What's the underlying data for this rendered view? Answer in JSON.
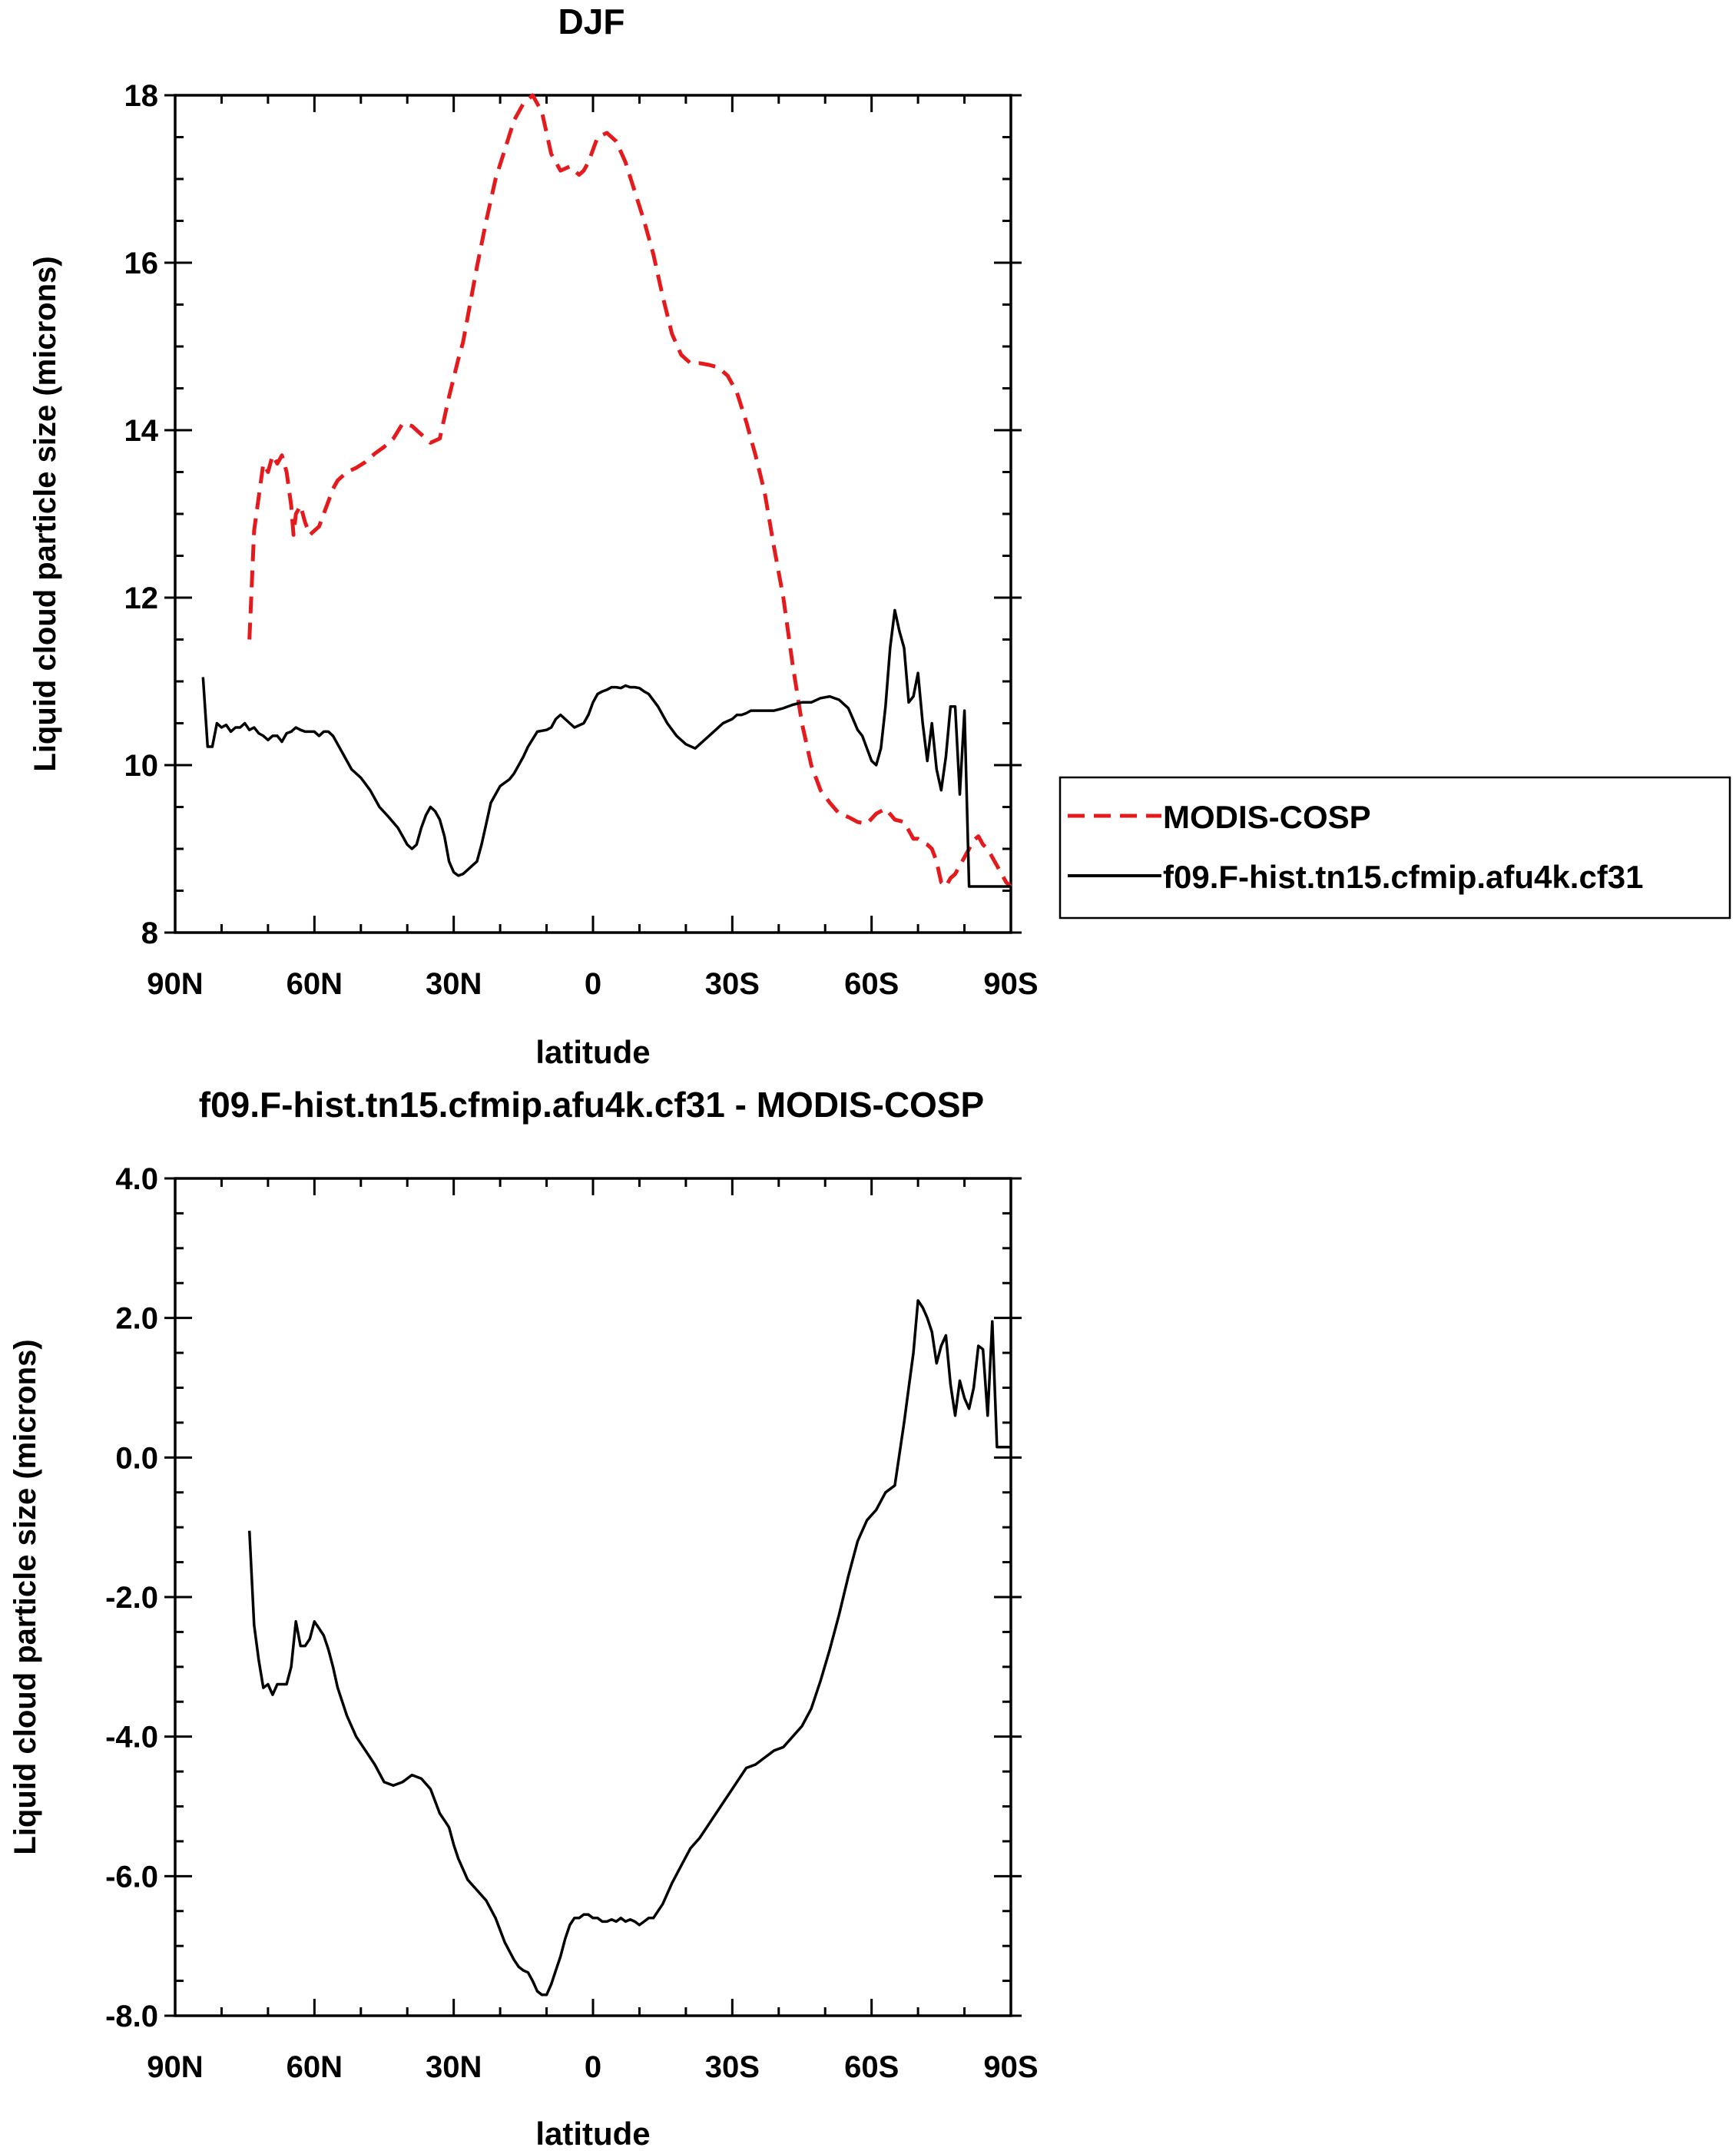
{
  "chart_data": [
    {
      "type": "line",
      "title": "DJF",
      "xlabel": "latitude",
      "ylabel": "Liquid cloud particle size (microns)",
      "xlim": [
        90,
        -90
      ],
      "ylim": [
        8,
        18
      ],
      "xticks": [
        90,
        60,
        30,
        0,
        -30,
        -60,
        -90
      ],
      "xtick_labels": [
        "90N",
        "60N",
        "30N",
        "0",
        "30S",
        "60S",
        "90S"
      ],
      "yticks": [
        8,
        10,
        12,
        14,
        16,
        18
      ],
      "ytick_labels": [
        "8",
        "10",
        "12",
        "14",
        "16",
        "18"
      ],
      "legend_position": "right",
      "series": [
        {
          "name": "MODIS-COSP",
          "color": "#e41a1c",
          "dash": "dashed",
          "x": [
            74,
            73,
            71,
            70,
            69,
            68,
            67,
            66,
            65,
            64.5,
            64,
            63,
            62,
            61,
            60,
            59,
            58,
            57,
            56,
            55,
            53,
            51,
            49,
            47,
            45,
            43,
            41,
            39,
            37,
            35,
            33,
            31,
            29,
            28,
            27,
            25,
            23,
            21,
            19,
            17,
            15,
            13,
            11,
            9,
            7,
            5,
            4,
            3,
            2,
            1,
            0,
            -1,
            -3,
            -5,
            -7,
            -9,
            -11,
            -13,
            -15,
            -17,
            -19,
            -21,
            -23,
            -25,
            -27,
            -29,
            -31,
            -33,
            -35,
            -37,
            -39,
            -41,
            -43,
            -45,
            -47,
            -49,
            -51,
            -53,
            -55,
            -57,
            -59,
            -61,
            -63,
            -65,
            -67,
            -69,
            -70,
            -71,
            -72,
            -73,
            -74,
            -75,
            -76,
            -77,
            -78,
            -79,
            -80,
            -81,
            -82,
            -83,
            -84,
            -85,
            -86,
            -87,
            -88,
            -89,
            -90
          ],
          "y": [
            11.5,
            12.8,
            13.6,
            13.5,
            13.7,
            13.6,
            13.7,
            13.5,
            13.1,
            12.75,
            13.0,
            13.1,
            12.9,
            12.75,
            12.8,
            12.85,
            13.0,
            13.15,
            13.3,
            13.4,
            13.5,
            13.55,
            13.62,
            13.72,
            13.8,
            13.9,
            14.08,
            14.05,
            13.95,
            13.85,
            13.9,
            14.4,
            14.85,
            15.05,
            15.35,
            15.95,
            16.5,
            17.0,
            17.35,
            17.7,
            17.9,
            18.0,
            17.8,
            17.3,
            17.1,
            17.15,
            17.1,
            17.05,
            17.1,
            17.2,
            17.35,
            17.5,
            17.55,
            17.45,
            17.2,
            16.85,
            16.5,
            16.1,
            15.6,
            15.15,
            14.9,
            14.8,
            14.8,
            14.78,
            14.75,
            14.65,
            14.45,
            14.1,
            13.7,
            13.25,
            12.6,
            12.0,
            11.2,
            10.5,
            10.0,
            9.7,
            9.55,
            9.42,
            9.38,
            9.32,
            9.3,
            9.42,
            9.48,
            9.35,
            9.32,
            9.12,
            9.12,
            9.08,
            9.05,
            9.0,
            8.85,
            8.6,
            8.55,
            8.65,
            8.7,
            8.8,
            8.9,
            9.0,
            9.1,
            9.15,
            9.05,
            9.0,
            8.9,
            8.8,
            8.7,
            8.6,
            8.55
          ]
        },
        {
          "name": "f09.F-hist.tn15.cfmip.afu4k.cf31",
          "color": "#000000",
          "dash": "solid",
          "x": [
            84,
            83,
            82,
            81,
            80,
            79,
            78,
            77,
            76,
            75,
            74,
            73,
            72,
            71,
            70,
            69,
            68,
            67,
            66,
            65,
            64,
            63,
            62,
            61,
            60,
            59,
            58,
            57,
            56,
            55,
            54,
            52,
            50,
            48,
            46,
            44,
            42,
            41,
            40,
            39,
            38,
            37,
            36,
            35,
            34,
            33,
            32,
            31,
            30,
            29,
            28,
            27,
            26,
            25,
            24,
            23,
            22,
            20,
            18,
            17,
            16,
            15,
            14,
            12,
            10,
            9,
            8,
            7,
            6,
            4,
            2,
            1,
            0,
            -1,
            -2,
            -3,
            -4,
            -5,
            -6,
            -7,
            -8,
            -9,
            -10,
            -11,
            -12,
            -14,
            -16,
            -18,
            -20,
            -22,
            -24,
            -26,
            -28,
            -30,
            -31,
            -32,
            -33,
            -34,
            -35,
            -37,
            -39,
            -41,
            -43,
            -45,
            -47,
            -49,
            -51,
            -53,
            -55,
            -56,
            -57,
            -58,
            -59,
            -60,
            -61,
            -62,
            -63,
            -64,
            -65,
            -66,
            -67,
            -68,
            -69,
            -70,
            -71,
            -72,
            -73,
            -74,
            -75,
            -76,
            -77,
            -78,
            -79,
            -80,
            -81,
            -82,
            -83,
            -84,
            -85,
            -86,
            -87,
            -88,
            -89,
            -90
          ],
          "y": [
            11.05,
            10.22,
            10.22,
            10.5,
            10.45,
            10.48,
            10.4,
            10.45,
            10.45,
            10.5,
            10.42,
            10.45,
            10.38,
            10.35,
            10.3,
            10.35,
            10.35,
            10.28,
            10.38,
            10.4,
            10.45,
            10.42,
            10.4,
            10.4,
            10.4,
            10.35,
            10.4,
            10.4,
            10.35,
            10.25,
            10.15,
            9.95,
            9.85,
            9.7,
            9.5,
            9.38,
            9.25,
            9.15,
            9.05,
            9.0,
            9.05,
            9.25,
            9.4,
            9.5,
            9.45,
            9.35,
            9.15,
            8.85,
            8.72,
            8.68,
            8.7,
            8.75,
            8.8,
            8.85,
            9.05,
            9.3,
            9.55,
            9.75,
            9.83,
            9.9,
            10.0,
            10.1,
            10.22,
            10.4,
            10.42,
            10.45,
            10.55,
            10.6,
            10.55,
            10.45,
            10.5,
            10.6,
            10.75,
            10.85,
            10.88,
            10.9,
            10.93,
            10.93,
            10.92,
            10.95,
            10.93,
            10.93,
            10.92,
            10.88,
            10.85,
            10.7,
            10.5,
            10.35,
            10.25,
            10.2,
            10.3,
            10.4,
            10.5,
            10.55,
            10.6,
            10.6,
            10.62,
            10.65,
            10.65,
            10.65,
            10.65,
            10.68,
            10.72,
            10.75,
            10.75,
            10.8,
            10.82,
            10.78,
            10.68,
            10.55,
            10.42,
            10.35,
            10.2,
            10.05,
            10.0,
            10.2,
            10.7,
            11.4,
            11.85,
            11.6,
            11.4,
            10.75,
            10.82,
            11.1,
            10.5,
            10.05,
            10.5,
            9.95,
            9.7,
            10.1,
            10.7,
            10.7,
            9.65,
            10.65,
            8.55,
            8.55,
            8.55,
            8.55,
            8.55,
            8.55,
            8.55,
            8.55,
            8.55,
            8.55
          ]
        }
      ]
    },
    {
      "type": "line",
      "title": "f09.F-hist.tn15.cfmip.afu4k.cf31 - MODIS-COSP",
      "xlabel": "latitude",
      "ylabel": "Liquid cloud particle size (microns)",
      "xlim": [
        90,
        -90
      ],
      "ylim": [
        -8,
        4
      ],
      "xticks": [
        90,
        60,
        30,
        0,
        -30,
        -60,
        -90
      ],
      "xtick_labels": [
        "90N",
        "60N",
        "30N",
        "0",
        "30S",
        "60S",
        "90S"
      ],
      "yticks": [
        -8,
        -6,
        -4,
        -2,
        0,
        2,
        4
      ],
      "ytick_labels": [
        "-8.0",
        "-6.0",
        "-4.0",
        "-2.0",
        "0.0",
        "2.0",
        "4.0"
      ],
      "series": [
        {
          "color": "#000000",
          "dash": "solid",
          "x": [
            74,
            73,
            72,
            71,
            70,
            69,
            68,
            67,
            66,
            65,
            64,
            63,
            62,
            61,
            60,
            59,
            58,
            57,
            56,
            55,
            53,
            51,
            49,
            47,
            45,
            43,
            41,
            39,
            37,
            35,
            33,
            32,
            31,
            30,
            29,
            28,
            27,
            25,
            23,
            21,
            19,
            17,
            16,
            15,
            14,
            13,
            12,
            11,
            10,
            9,
            8,
            7,
            6,
            5,
            4,
            3,
            2,
            1,
            0,
            -1,
            -2,
            -3,
            -4,
            -5,
            -6,
            -7,
            -8,
            -9,
            -10,
            -11,
            -12,
            -13,
            -14,
            -15,
            -17,
            -19,
            -21,
            -23,
            -25,
            -27,
            -29,
            -31,
            -33,
            -35,
            -37,
            -39,
            -41,
            -43,
            -45,
            -47,
            -49,
            -51,
            -53,
            -55,
            -57,
            -59,
            -61,
            -63,
            -65,
            -67,
            -68,
            -69,
            -70,
            -71,
            -72,
            -73,
            -74,
            -75,
            -76,
            -77,
            -78,
            -79,
            -80,
            -81,
            -82,
            -83,
            -84,
            -85,
            -86,
            -87,
            -88,
            -89,
            -90
          ],
          "y": [
            -1.05,
            -2.4,
            -2.9,
            -3.3,
            -3.25,
            -3.4,
            -3.25,
            -3.25,
            -3.25,
            -3.0,
            -2.35,
            -2.7,
            -2.7,
            -2.6,
            -2.35,
            -2.45,
            -2.55,
            -2.75,
            -3.0,
            -3.3,
            -3.7,
            -4.0,
            -4.2,
            -4.4,
            -4.65,
            -4.7,
            -4.65,
            -4.55,
            -4.6,
            -4.75,
            -5.1,
            -5.2,
            -5.3,
            -5.55,
            -5.75,
            -5.9,
            -6.05,
            -6.2,
            -6.35,
            -6.6,
            -6.95,
            -7.2,
            -7.3,
            -7.35,
            -7.38,
            -7.5,
            -7.65,
            -7.7,
            -7.7,
            -7.55,
            -7.35,
            -7.15,
            -6.9,
            -6.7,
            -6.6,
            -6.6,
            -6.55,
            -6.55,
            -6.6,
            -6.6,
            -6.65,
            -6.65,
            -6.62,
            -6.65,
            -6.6,
            -6.65,
            -6.62,
            -6.65,
            -6.7,
            -6.65,
            -6.6,
            -6.6,
            -6.5,
            -6.4,
            -6.1,
            -5.85,
            -5.6,
            -5.45,
            -5.25,
            -5.05,
            -4.85,
            -4.65,
            -4.45,
            -4.4,
            -4.3,
            -4.2,
            -4.15,
            -4.0,
            -3.85,
            -3.6,
            -3.2,
            -2.75,
            -2.25,
            -1.7,
            -1.2,
            -0.9,
            -0.75,
            -0.5,
            -0.4,
            0.5,
            1.0,
            1.5,
            2.25,
            2.15,
            2.0,
            1.8,
            1.35,
            1.6,
            1.75,
            1.05,
            0.6,
            1.1,
            0.85,
            0.7,
            1.0,
            1.6,
            1.55,
            0.6,
            1.95,
            0.15,
            0.15,
            0.15,
            0.15
          ]
        }
      ]
    }
  ]
}
